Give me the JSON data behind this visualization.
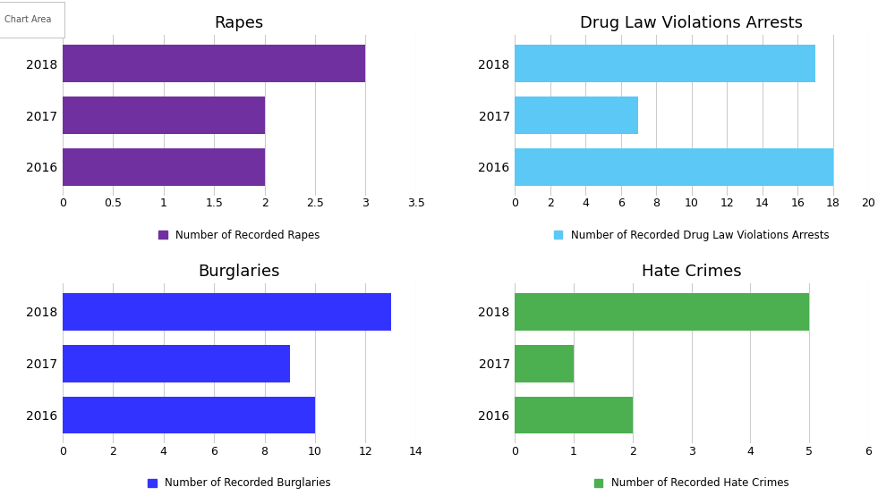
{
  "rapes": {
    "title": "Rapes",
    "years": [
      "2018",
      "2017",
      "2016"
    ],
    "values": [
      3,
      2,
      2
    ],
    "color": "#7030A0",
    "legend": "Number of Recorded Rapes",
    "xlim": [
      0,
      3.5
    ],
    "xticks": [
      0,
      0.5,
      1,
      1.5,
      2,
      2.5,
      3,
      3.5
    ]
  },
  "drug": {
    "title": "Drug Law Violations Arrests",
    "years": [
      "2018",
      "2017",
      "2016"
    ],
    "values": [
      17,
      7,
      18
    ],
    "color": "#5BC8F5",
    "legend": "Number of Recorded Drug Law Violations Arrests",
    "xlim": [
      0,
      20
    ],
    "xticks": [
      0,
      2,
      4,
      6,
      8,
      10,
      12,
      14,
      16,
      18,
      20
    ]
  },
  "burglaries": {
    "title": "Burglaries",
    "years": [
      "2018",
      "2017",
      "2016"
    ],
    "values": [
      13,
      9,
      10
    ],
    "color": "#3333FF",
    "legend": "Number of Recorded Burglaries",
    "xlim": [
      0,
      14
    ],
    "xticks": [
      0,
      2,
      4,
      6,
      8,
      10,
      12,
      14
    ]
  },
  "hate": {
    "title": "Hate Crimes",
    "years": [
      "2018",
      "2017",
      "2016"
    ],
    "values": [
      5,
      1,
      2
    ],
    "color": "#4CAF50",
    "legend": "Number of Recorded Hate Crimes",
    "xlim": [
      0,
      6
    ],
    "xticks": [
      0,
      1,
      2,
      3,
      4,
      5,
      6
    ]
  },
  "background_color": "#FFFFFF",
  "chart_area_label": "Chart Area",
  "title_fontsize": 13,
  "legend_fontsize": 8.5,
  "tick_fontsize": 9,
  "ytick_fontsize": 10,
  "bar_height": 0.72
}
